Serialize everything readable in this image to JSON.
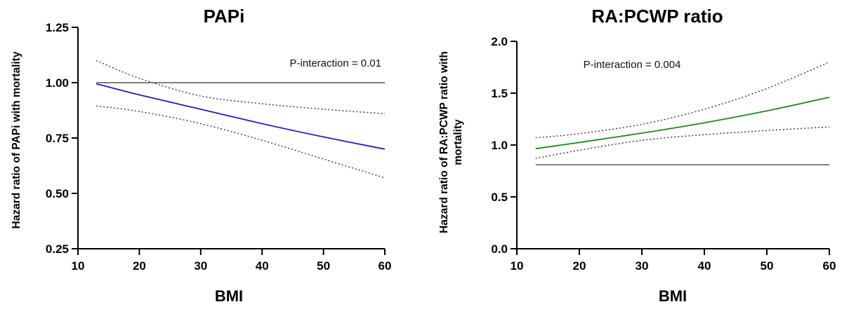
{
  "chart_data": [
    {
      "type": "line",
      "title": "PAPi",
      "xlabel": "BMI",
      "ylabel": "Hazard ratio of PAPi with mortality",
      "xlim": [
        10,
        60
      ],
      "ylim": [
        0.25,
        1.25
      ],
      "xticks": [
        "10",
        "20",
        "30",
        "40",
        "50",
        "60"
      ],
      "yticks": [
        "0.25",
        "0.50",
        "0.75",
        "1.00",
        "1.25"
      ],
      "reference_line_y": 1.0,
      "annotation": "P-interaction = 0.01",
      "line_color": "#1f1fb4",
      "series": [
        {
          "x": [
            13,
            20,
            30,
            40,
            50,
            60
          ],
          "values": [
            0.995,
            0.945,
            0.88,
            0.815,
            0.755,
            0.7
          ]
        },
        {
          "x": [
            13,
            20,
            30,
            40,
            50,
            60
          ],
          "values": [
            1.1,
            1.02,
            0.94,
            0.905,
            0.88,
            0.86
          ]
        },
        {
          "x": [
            13,
            20,
            30,
            40,
            50,
            60
          ],
          "values": [
            0.895,
            0.87,
            0.815,
            0.74,
            0.655,
            0.57
          ]
        }
      ]
    },
    {
      "type": "line",
      "title": "RA:PCWP ratio",
      "xlabel": "BMI",
      "ylabel": "Hazard ratio of RA:PCWP ratio with mortality",
      "ylabel_lines": [
        "Hazard ratio of RA:PCWP ratio with",
        "mortality"
      ],
      "xlim": [
        10,
        60
      ],
      "ylim": [
        0.0,
        2.0
      ],
      "xticks": [
        "10",
        "20",
        "30",
        "40",
        "50",
        "60"
      ],
      "yticks": [
        "0.0",
        "0.5",
        "1.0",
        "1.5",
        "2.0"
      ],
      "reference_line_y": 0.81,
      "annotation": "P-interaction = 0.004",
      "line_color": "#1a8a1a",
      "series": [
        {
          "x": [
            13,
            20,
            30,
            40,
            50,
            60
          ],
          "values": [
            0.965,
            1.025,
            1.115,
            1.215,
            1.33,
            1.46
          ]
        },
        {
          "x": [
            13,
            20,
            30,
            40,
            50,
            60
          ],
          "values": [
            1.07,
            1.11,
            1.2,
            1.345,
            1.545,
            1.8
          ]
        },
        {
          "x": [
            13,
            20,
            30,
            40,
            50,
            60
          ],
          "values": [
            0.87,
            0.95,
            1.045,
            1.1,
            1.14,
            1.175
          ]
        }
      ]
    }
  ]
}
